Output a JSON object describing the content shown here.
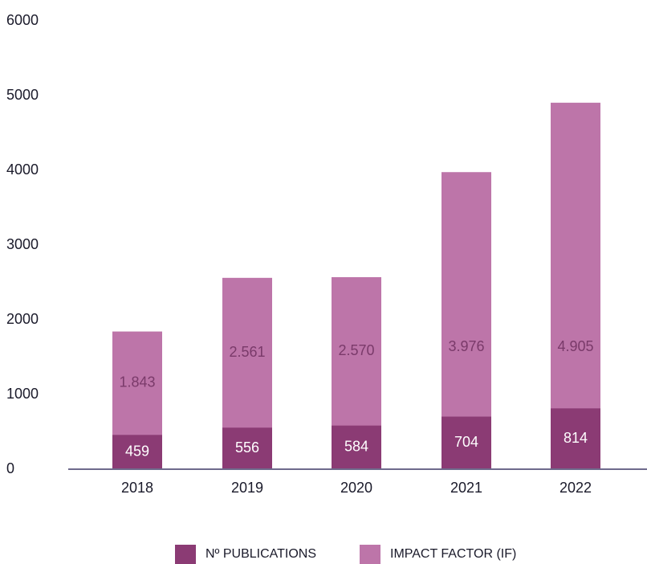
{
  "chart_data": {
    "type": "bar",
    "categories": [
      "2018",
      "2019",
      "2020",
      "2021",
      "2022"
    ],
    "series": [
      {
        "name": "Nº PUBLICATIONS",
        "color": "#8b3b74",
        "values": [
          459,
          556,
          584,
          704,
          814
        ]
      },
      {
        "name": "IMPACT FACTOR (IF)",
        "color": "#bd75a9",
        "values": [
          1843,
          2561,
          2570,
          3976,
          4905
        ],
        "value_labels": [
          "1.843",
          "2.561",
          "2.570",
          "3.976",
          "4.905"
        ]
      }
    ],
    "ylim": [
      0,
      6000
    ],
    "yticks": [
      0,
      1000,
      2000,
      3000,
      4000,
      5000,
      6000
    ],
    "grid": false,
    "legend": "bottom"
  }
}
